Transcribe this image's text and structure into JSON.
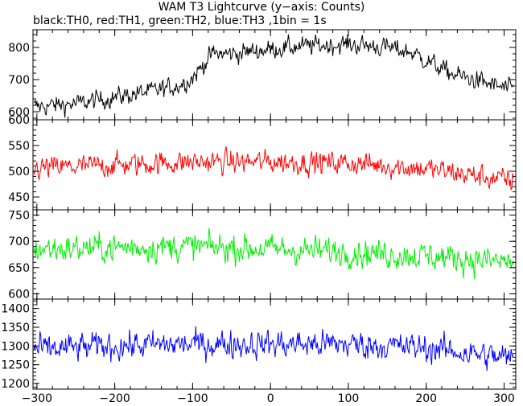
{
  "title": "WAM T3 Lightcurve (y−axis: Counts)",
  "subtitle": "black:TH0, red:TH1, green:TH2, blue:TH3 ,1bin = 1s",
  "chart_data": {
    "type": "line",
    "x_range": [
      -305,
      315
    ],
    "x_ticks": [
      -300,
      -200,
      -100,
      0,
      100,
      200,
      300
    ],
    "x_tick_labels": [
      "−300",
      "−200",
      "−100",
      "0",
      "100",
      "200",
      "300"
    ],
    "panels": [
      {
        "name": "TH0",
        "color": "#000000",
        "y_range": [
          575,
          855
        ],
        "y_ticks": [
          600,
          700,
          800
        ],
        "y_tick_labels": [
          "600",
          "700",
          "800"
        ],
        "trend_x": [
          -305,
          -250,
          -200,
          -150,
          -120,
          -100,
          -85,
          -75,
          -50,
          0,
          50,
          100,
          150,
          180,
          200,
          230,
          260,
          290,
          315
        ],
        "trend_y": [
          615,
          625,
          645,
          665,
          680,
          705,
          750,
          780,
          780,
          795,
          805,
          810,
          800,
          785,
          760,
          720,
          700,
          680,
          665
        ],
        "noise": 30
      },
      {
        "name": "TH1",
        "color": "#ff0000",
        "y_range": [
          425,
          600
        ],
        "y_ticks": [
          450,
          500,
          550,
          600
        ],
        "y_tick_labels": [
          "450",
          "500",
          "550",
          "600"
        ],
        "trend_x": [
          -305,
          -200,
          -100,
          0,
          100,
          200,
          315
        ],
        "trend_y": [
          505,
          512,
          518,
          518,
          516,
          505,
          480
        ],
        "noise": 23
      },
      {
        "name": "TH2",
        "color": "#00ee00",
        "y_range": [
          590,
          760
        ],
        "y_ticks": [
          600,
          650,
          700,
          750
        ],
        "y_tick_labels": [
          "600",
          "650",
          "700",
          "750"
        ],
        "trend_x": [
          -305,
          -200,
          -100,
          0,
          100,
          200,
          315
        ],
        "trend_y": [
          685,
          688,
          690,
          685,
          680,
          672,
          660
        ],
        "noise": 27
      },
      {
        "name": "TH3",
        "color": "#0000ff",
        "y_range": [
          1185,
          1425
        ],
        "y_ticks": [
          1200,
          1250,
          1300,
          1350,
          1400
        ],
        "y_tick_labels": [
          "1200",
          "1250",
          "1300",
          "1350",
          "1400"
        ],
        "trend_x": [
          -305,
          -200,
          -100,
          0,
          100,
          200,
          315
        ],
        "trend_y": [
          1290,
          1300,
          1305,
          1305,
          1305,
          1295,
          1265
        ],
        "noise": 38
      }
    ],
    "grid": false,
    "legend": "subtitle text"
  }
}
